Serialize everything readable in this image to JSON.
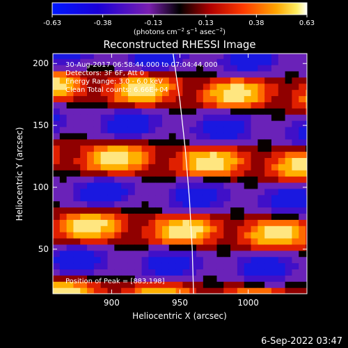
{
  "chart_data": {
    "type": "heatmap",
    "title": "Reconstructed RHESSI Image",
    "xlabel": "Heliocentric X (arcsec)",
    "ylabel": "Heliocentric Y (arcsec)",
    "x_ticks": [
      900,
      950,
      1000
    ],
    "y_ticks": [
      50,
      100,
      150,
      200
    ],
    "xlim": [
      857,
      1043
    ],
    "ylim": [
      14,
      208
    ],
    "colorbar": {
      "label_html": "(photons cm<tspan dy=\"-4\" font-size=\"7\">−2</tspan><tspan dy=\"4\"> s</tspan><tspan dy=\"-4\" font-size=\"7\">−1</tspan><tspan dy=\"4\"> asec</tspan><tspan dy=\"-4\" font-size=\"7\">−2</tspan><tspan dy=\"4\">)</tspan>",
      "tick_labels": [
        "-0.63",
        "-0.38",
        "-0.13",
        "0.13",
        "0.38",
        "0.63"
      ],
      "range": [
        -0.63,
        0.63
      ]
    },
    "annotations": [
      "30-Aug-2017 06:58:44.000 to 07:04:44.000",
      "Detectors: 3F 6F, Att 0",
      "Energy Range: 3.0 - 6.0 keV",
      "Clean    Total counts: 6.66E+04"
    ],
    "peak_label": "Position of Peak = [883,198]",
    "limb_curve": [
      [
        945,
        208
      ],
      [
        950,
        170
      ],
      [
        954,
        130
      ],
      [
        957,
        90
      ],
      [
        959,
        50
      ],
      [
        960,
        14
      ]
    ]
  },
  "footer": {
    "date": "6-Sep-2022 03:47"
  }
}
